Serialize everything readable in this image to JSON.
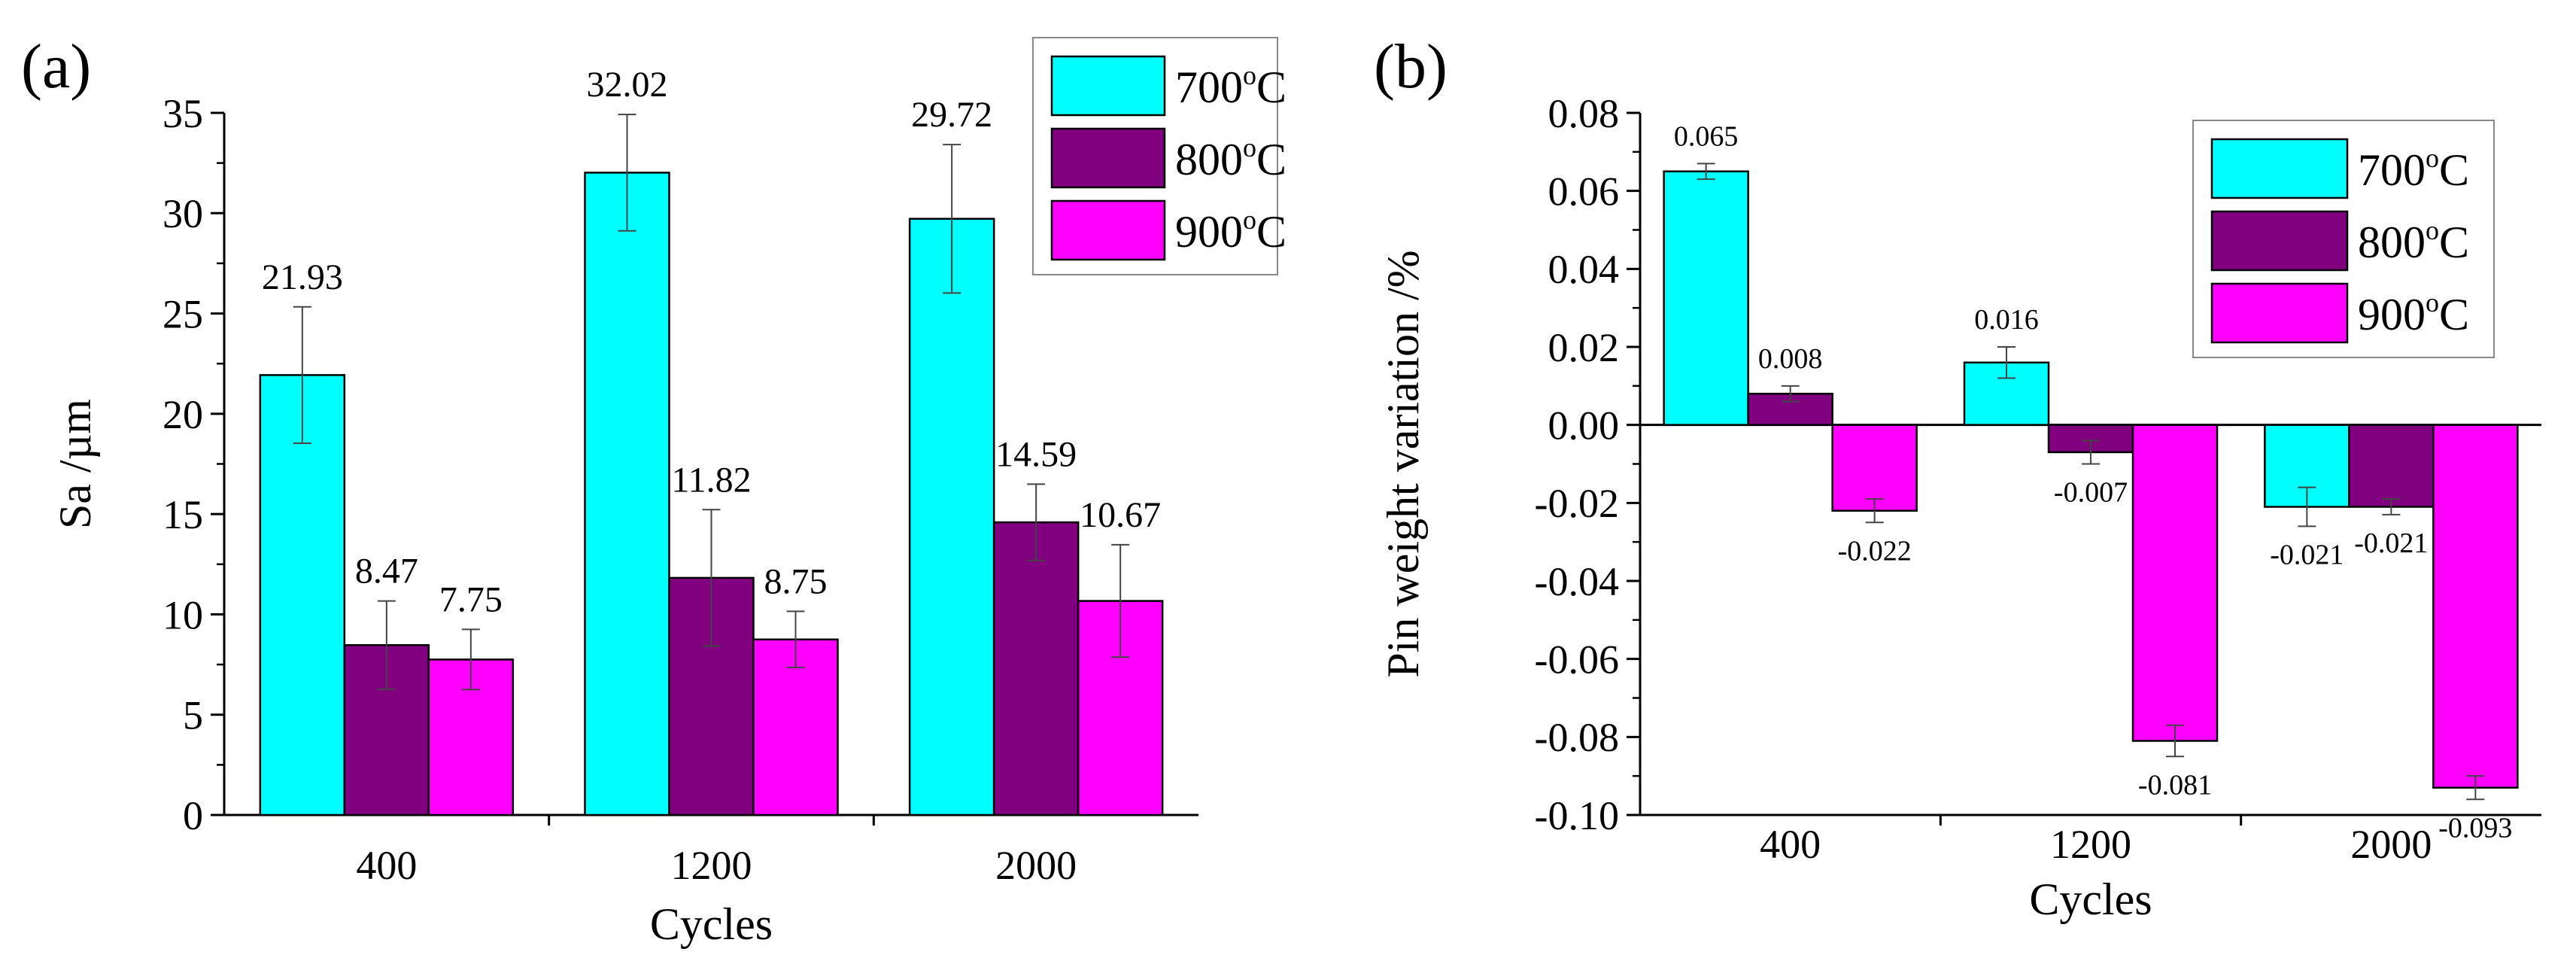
{
  "chart_data": [
    {
      "panel_label": "(a)",
      "type": "bar",
      "categories": [
        "400",
        "1200",
        "2000"
      ],
      "series": [
        {
          "name": "700",
          "unit_sup": "o",
          "unit": "C",
          "color": "#00FFFF",
          "values": [
            21.93,
            32.02,
            29.72
          ],
          "errors": [
            3.4,
            2.9,
            3.7
          ],
          "labels": [
            "21.93",
            "32.02",
            "29.72"
          ]
        },
        {
          "name": "800",
          "unit_sup": "o",
          "unit": "C",
          "color": "#800080",
          "values": [
            8.47,
            11.82,
            14.59
          ],
          "errors": [
            2.2,
            3.4,
            1.9
          ],
          "labels": [
            "8.47",
            "11.82",
            "14.59"
          ]
        },
        {
          "name": "900",
          "unit_sup": "o",
          "unit": "C",
          "color": "#FF00FF",
          "values": [
            7.75,
            8.75,
            10.67
          ],
          "errors": [
            1.5,
            1.4,
            2.8
          ],
          "labels": [
            "7.75",
            "8.75",
            "10.67"
          ]
        }
      ],
      "xlabel": "Cycles",
      "ylabel": "Sa /µm",
      "ylim": [
        0,
        35
      ],
      "yticks": [
        0,
        5,
        10,
        15,
        20,
        25,
        30,
        35
      ],
      "ytick_labels": [
        "0",
        "5",
        "10",
        "15",
        "20",
        "25",
        "30",
        "35"
      ],
      "legend": "top-right",
      "grid": false
    },
    {
      "panel_label": "(b)",
      "type": "bar",
      "categories": [
        "400",
        "1200",
        "2000"
      ],
      "series": [
        {
          "name": "700",
          "unit_sup": "o",
          "unit": "C",
          "color": "#00FFFF",
          "values": [
            0.065,
            0.016,
            -0.021
          ],
          "errors": [
            0.002,
            0.004,
            0.005
          ],
          "labels": [
            "0.065",
            "0.016",
            "-0.021"
          ]
        },
        {
          "name": "800",
          "unit_sup": "o",
          "unit": "C",
          "color": "#800080",
          "values": [
            0.008,
            -0.007,
            -0.021
          ],
          "errors": [
            0.002,
            0.003,
            0.002
          ],
          "labels": [
            "0.008",
            "-0.007",
            "-0.021"
          ]
        },
        {
          "name": "900",
          "unit_sup": "o",
          "unit": "C",
          "color": "#FF00FF",
          "values": [
            -0.022,
            -0.081,
            -0.093
          ],
          "errors": [
            0.003,
            0.004,
            0.003
          ],
          "labels": [
            "-0.022",
            "-0.081",
            "-0.093"
          ]
        }
      ],
      "xlabel": "Cycles",
      "ylabel": "Pin weight variation /%",
      "ylim": [
        -0.1,
        0.08
      ],
      "yticks": [
        -0.1,
        -0.08,
        -0.06,
        -0.04,
        -0.02,
        0.0,
        0.02,
        0.04,
        0.06,
        0.08
      ],
      "ytick_labels": [
        "-0.10",
        "-0.08",
        "-0.06",
        "-0.04",
        "-0.02",
        "0.00",
        "0.02",
        "0.04",
        "0.06",
        "0.08"
      ],
      "legend": "top-right",
      "grid": false
    }
  ]
}
